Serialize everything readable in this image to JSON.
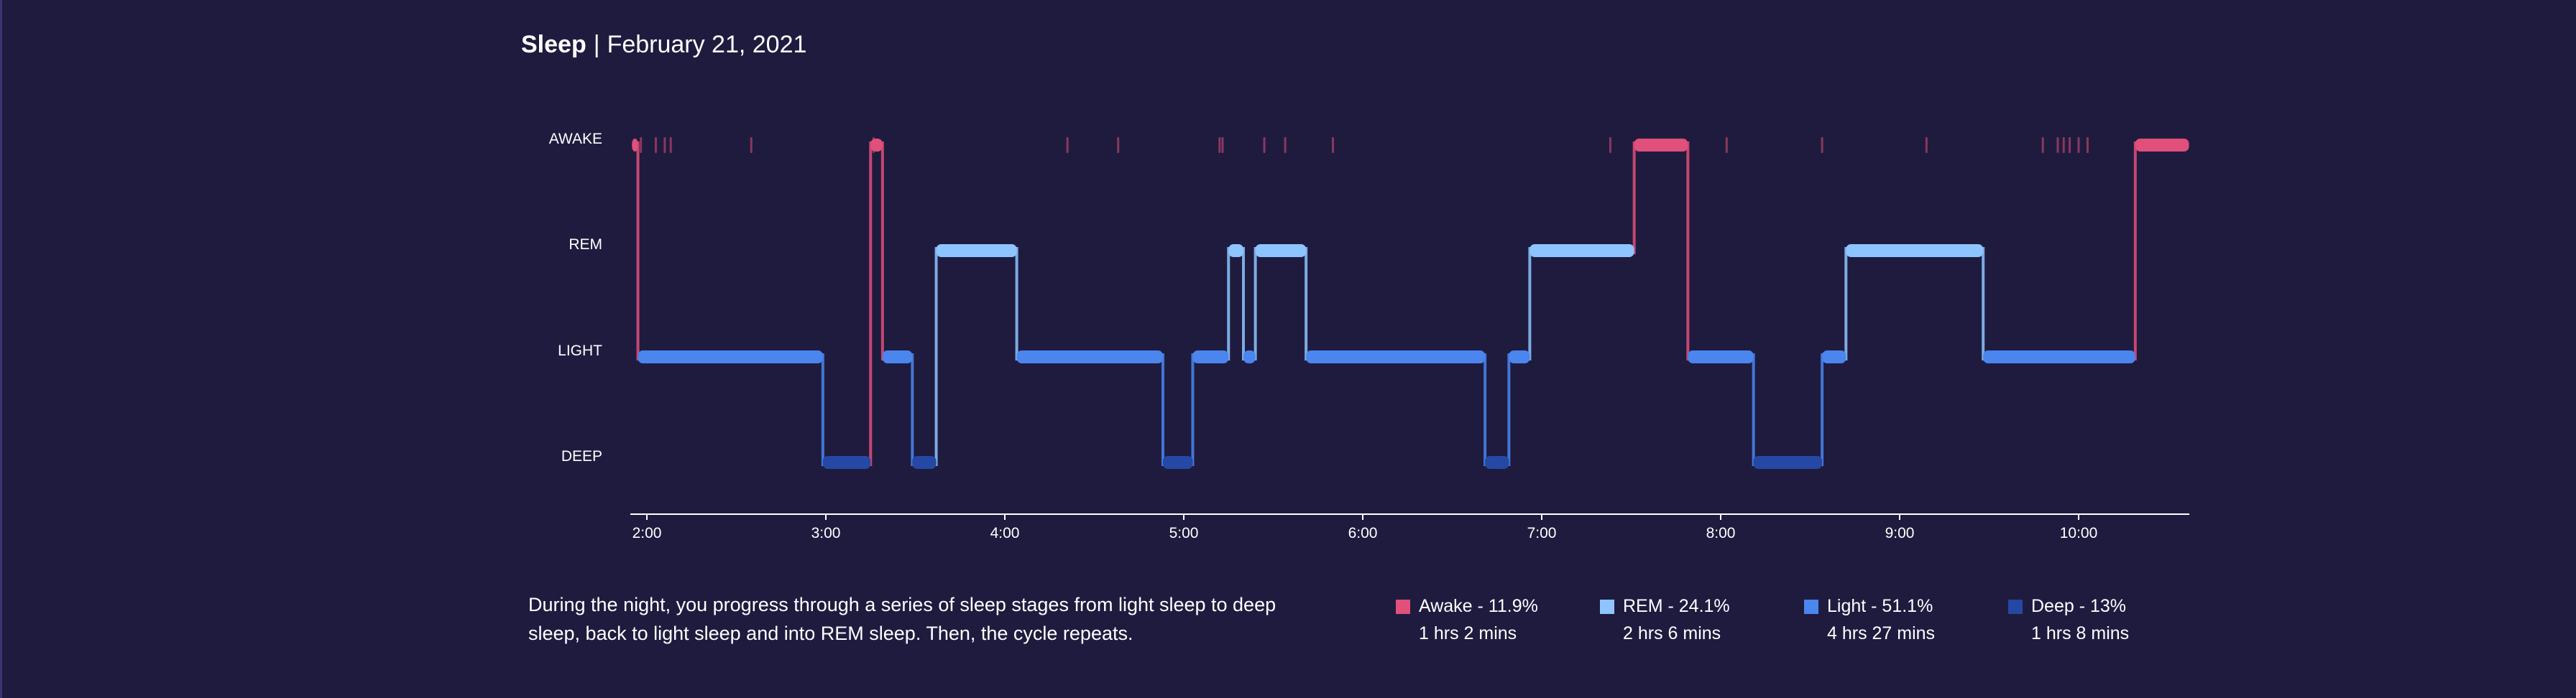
{
  "header": {
    "title": "Sleep",
    "separator": "|",
    "date": "February 21, 2021"
  },
  "colors": {
    "background": "#1f1b3f",
    "awake": "#e0507a",
    "rem": "#8ec4ff",
    "light": "#4a86ee",
    "deep": "#2548a4",
    "axis": "#ffffff"
  },
  "chart_data": {
    "type": "line",
    "chart_kind": "sleep-stage hypnogram (step)",
    "y_categories": [
      "AWAKE",
      "REM",
      "LIGHT",
      "DEEP"
    ],
    "x_tick_labels": [
      "2:00",
      "3:00",
      "4:00",
      "5:00",
      "6:00",
      "7:00",
      "8:00",
      "9:00",
      "10:00"
    ],
    "x_range": [
      "1:55",
      "10:40"
    ],
    "segments": [
      {
        "start": "1:55",
        "end": "1:57",
        "stage": "AWAKE"
      },
      {
        "start": "1:57",
        "end": "2:59",
        "stage": "LIGHT"
      },
      {
        "start": "2:59",
        "end": "3:15",
        "stage": "DEEP"
      },
      {
        "start": "3:15",
        "end": "3:19",
        "stage": "AWAKE"
      },
      {
        "start": "3:19",
        "end": "3:29",
        "stage": "LIGHT"
      },
      {
        "start": "3:29",
        "end": "3:37",
        "stage": "DEEP"
      },
      {
        "start": "3:37",
        "end": "4:04",
        "stage": "REM"
      },
      {
        "start": "4:04",
        "end": "4:53",
        "stage": "LIGHT"
      },
      {
        "start": "4:53",
        "end": "5:03",
        "stage": "DEEP"
      },
      {
        "start": "5:03",
        "end": "5:15",
        "stage": "LIGHT"
      },
      {
        "start": "5:15",
        "end": "5:20",
        "stage": "REM"
      },
      {
        "start": "5:20",
        "end": "5:24",
        "stage": "LIGHT"
      },
      {
        "start": "5:24",
        "end": "5:41",
        "stage": "REM"
      },
      {
        "start": "5:41",
        "end": "6:41",
        "stage": "LIGHT"
      },
      {
        "start": "6:41",
        "end": "6:49",
        "stage": "DEEP"
      },
      {
        "start": "6:49",
        "end": "6:56",
        "stage": "LIGHT"
      },
      {
        "start": "6:56",
        "end": "7:31",
        "stage": "REM"
      },
      {
        "start": "7:31",
        "end": "7:49",
        "stage": "AWAKE"
      },
      {
        "start": "7:49",
        "end": "8:11",
        "stage": "LIGHT"
      },
      {
        "start": "8:11",
        "end": "8:34",
        "stage": "DEEP"
      },
      {
        "start": "8:34",
        "end": "8:42",
        "stage": "LIGHT"
      },
      {
        "start": "8:42",
        "end": "9:28",
        "stage": "REM"
      },
      {
        "start": "9:28",
        "end": "10:19",
        "stage": "LIGHT"
      },
      {
        "start": "10:19",
        "end": "10:37",
        "stage": "AWAKE"
      }
    ],
    "awake_ticks": [
      "1:58",
      "2:03",
      "2:06",
      "2:08",
      "2:35",
      "3:16",
      "4:21",
      "4:38",
      "5:12",
      "5:13",
      "5:27",
      "5:34",
      "5:50",
      "7:23",
      "8:02",
      "8:34",
      "9:09",
      "9:48",
      "9:53",
      "9:55",
      "9:57",
      "10:00",
      "10:03"
    ],
    "legend": [
      {
        "name": "Awake - 11.9%",
        "duration": "1 hrs 2 mins",
        "stage": "awake"
      },
      {
        "name": "REM - 24.1%",
        "duration": "2 hrs 6 mins",
        "stage": "rem"
      },
      {
        "name": "Light - 51.1%",
        "duration": "4 hrs 27 mins",
        "stage": "light"
      },
      {
        "name": "Deep - 13%",
        "duration": "1 hrs 8 mins",
        "stage": "deep"
      }
    ],
    "grid": false
  },
  "description": "During the night, you progress through a series of sleep stages from light sleep to deep sleep, back to light sleep and into REM sleep. Then, the cycle repeats."
}
